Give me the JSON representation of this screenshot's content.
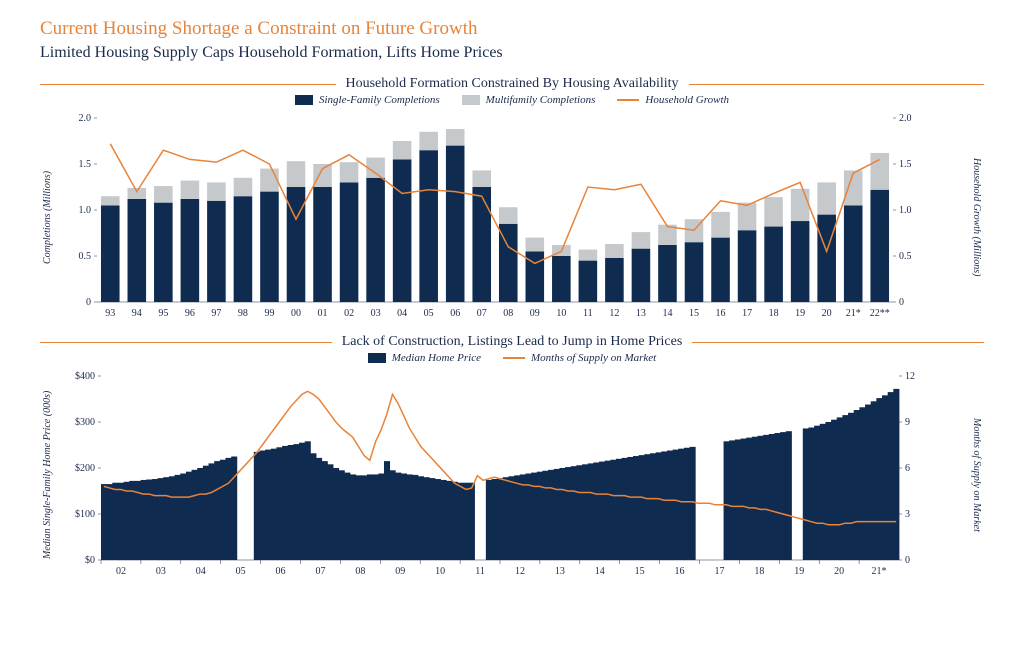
{
  "main_title": "Current Housing Shortage a Constraint on Future Growth",
  "subtitle": "Limited Housing Supply Caps Household Formation, Lifts Home Prices",
  "colors": {
    "accent": "#e8833a",
    "dark": "#0f2b50",
    "light_gray": "#c5c9cc",
    "text": "#1a2a4a",
    "rule": "#e8833a",
    "grid": "#ffffff",
    "bg": "#ffffff"
  },
  "chart1": {
    "title": "Household Formation Constrained By Housing Availability",
    "type": "stacked-bar-with-line",
    "legend": [
      {
        "label": "Single-Family Completions",
        "swatch": "#0f2b50",
        "kind": "box"
      },
      {
        "label": "Multifamily Completions",
        "swatch": "#c5c9cc",
        "kind": "box"
      },
      {
        "label": "Household Growth",
        "swatch": "#e8833a",
        "kind": "line"
      }
    ],
    "y_left_label": "Completions (Millions)",
    "y_right_label": "Household Growth (Millions)",
    "ylim": [
      0,
      2.0
    ],
    "yticks": [
      0,
      0.5,
      1.0,
      1.5,
      2.0
    ],
    "ytick_labels": [
      "0",
      "0.5",
      "1.0",
      "1.5",
      "2.0"
    ],
    "categories": [
      "93",
      "94",
      "95",
      "96",
      "97",
      "98",
      "99",
      "00",
      "01",
      "02",
      "03",
      "04",
      "05",
      "06",
      "07",
      "08",
      "09",
      "10",
      "11",
      "12",
      "13",
      "14",
      "15",
      "16",
      "17",
      "18",
      "19",
      "20",
      "21*",
      "22**"
    ],
    "single_family": [
      1.05,
      1.12,
      1.08,
      1.12,
      1.1,
      1.15,
      1.2,
      1.25,
      1.25,
      1.3,
      1.35,
      1.55,
      1.65,
      1.7,
      1.25,
      0.85,
      0.55,
      0.5,
      0.45,
      0.48,
      0.58,
      0.62,
      0.65,
      0.7,
      0.78,
      0.82,
      0.88,
      0.95,
      1.05,
      1.22
    ],
    "multifamily": [
      0.1,
      0.12,
      0.18,
      0.2,
      0.2,
      0.2,
      0.25,
      0.28,
      0.25,
      0.22,
      0.22,
      0.2,
      0.2,
      0.18,
      0.18,
      0.18,
      0.15,
      0.12,
      0.12,
      0.15,
      0.18,
      0.22,
      0.25,
      0.28,
      0.3,
      0.32,
      0.35,
      0.35,
      0.38,
      0.4
    ],
    "household_growth": [
      1.72,
      1.2,
      1.65,
      1.55,
      1.52,
      1.65,
      1.5,
      0.9,
      1.45,
      1.6,
      1.4,
      1.18,
      1.22,
      1.2,
      1.15,
      0.6,
      0.42,
      0.55,
      1.25,
      1.22,
      1.28,
      0.82,
      0.78,
      1.1,
      1.05,
      1.18,
      1.3,
      0.55,
      1.4,
      1.55
    ],
    "bar_width_ratio": 0.7,
    "line_width": 1.5
  },
  "chart2": {
    "title": "Lack of Construction, Listings Lead to Jump in Home Prices",
    "type": "dense-bar-with-line",
    "legend": [
      {
        "label": "Median Home Price",
        "swatch": "#0f2b50",
        "kind": "box"
      },
      {
        "label": "Months of Supply on Market",
        "swatch": "#e8833a",
        "kind": "line"
      }
    ],
    "y_left_label": "Median Single-Family Home Price (000s)",
    "y_right_label": "Months of Supply on Market",
    "ylim_left": [
      0,
      400
    ],
    "ylim_right": [
      0,
      12
    ],
    "yticks_left": [
      0,
      100,
      200,
      300,
      400
    ],
    "ytick_labels_left": [
      "$0",
      "$100",
      "$200",
      "$300",
      "$400"
    ],
    "yticks_right": [
      0,
      3,
      6,
      9,
      12
    ],
    "x_labels": [
      "02",
      "03",
      "04",
      "05",
      "06",
      "07",
      "08",
      "09",
      "10",
      "11",
      "12",
      "13",
      "14",
      "15",
      "16",
      "17",
      "18",
      "19",
      "20",
      "21*"
    ],
    "home_price": [
      165,
      165,
      168,
      168,
      170,
      172,
      172,
      174,
      175,
      176,
      178,
      180,
      182,
      185,
      188,
      192,
      196,
      200,
      205,
      210,
      215,
      218,
      222,
      225,
      228,
      230,
      232,
      235,
      238,
      240,
      242,
      245,
      248,
      250,
      252,
      255,
      258,
      232,
      222,
      215,
      208,
      200,
      195,
      190,
      186,
      184,
      184,
      186,
      186,
      188,
      215,
      195,
      190,
      188,
      186,
      185,
      182,
      180,
      178,
      176,
      174,
      172,
      170,
      168,
      168,
      168,
      170,
      172,
      174,
      176,
      178,
      180,
      182,
      184,
      186,
      188,
      190,
      192,
      194,
      196,
      198,
      200,
      202,
      204,
      206,
      208,
      210,
      212,
      214,
      216,
      218,
      220,
      222,
      224,
      226,
      228,
      230,
      232,
      234,
      236,
      238,
      240,
      242,
      244,
      246,
      248,
      250,
      252,
      254,
      256,
      258,
      260,
      262,
      264,
      266,
      268,
      270,
      272,
      274,
      276,
      278,
      280,
      282,
      284,
      286,
      288,
      292,
      296,
      300,
      305,
      310,
      315,
      320,
      326,
      332,
      338,
      345,
      352,
      358,
      365,
      372
    ],
    "months_supply": [
      4.8,
      4.7,
      4.6,
      4.6,
      4.5,
      4.5,
      4.4,
      4.3,
      4.3,
      4.2,
      4.2,
      4.2,
      4.1,
      4.1,
      4.1,
      4.1,
      4.2,
      4.3,
      4.3,
      4.4,
      4.6,
      4.8,
      5.0,
      5.4,
      5.8,
      6.2,
      6.6,
      7.0,
      7.5,
      8.0,
      8.5,
      9.0,
      9.5,
      10.0,
      10.4,
      10.8,
      11.0,
      10.8,
      10.5,
      10.0,
      9.5,
      9.0,
      8.6,
      8.3,
      8.0,
      7.4,
      6.8,
      6.5,
      7.7,
      8.5,
      9.5,
      10.8,
      10.2,
      9.4,
      8.6,
      8.0,
      7.4,
      7.0,
      6.6,
      6.2,
      5.8,
      5.4,
      5.0,
      4.8,
      4.6,
      4.7,
      5.5,
      5.2,
      5.3,
      5.4,
      5.3,
      5.2,
      5.1,
      5.0,
      4.9,
      4.9,
      4.8,
      4.8,
      4.7,
      4.7,
      4.6,
      4.6,
      4.5,
      4.5,
      4.4,
      4.4,
      4.4,
      4.3,
      4.3,
      4.3,
      4.2,
      4.2,
      4.2,
      4.1,
      4.1,
      4.1,
      4.0,
      4.0,
      4.0,
      3.9,
      3.9,
      3.9,
      3.8,
      3.8,
      3.8,
      3.7,
      3.7,
      3.7,
      3.6,
      3.6,
      3.6,
      3.5,
      3.5,
      3.5,
      3.4,
      3.4,
      3.3,
      3.3,
      3.2,
      3.1,
      3.0,
      2.9,
      2.8,
      2.7,
      2.6,
      2.5,
      2.4,
      2.4,
      2.3,
      2.3,
      2.3,
      2.4,
      2.4,
      2.5,
      2.5,
      2.5,
      2.5,
      2.5,
      2.5,
      2.5,
      2.5
    ],
    "gaps": [
      24,
      25,
      26,
      66,
      67,
      105,
      106,
      107,
      108,
      109,
      122,
      123
    ],
    "line_width": 1.5
  }
}
